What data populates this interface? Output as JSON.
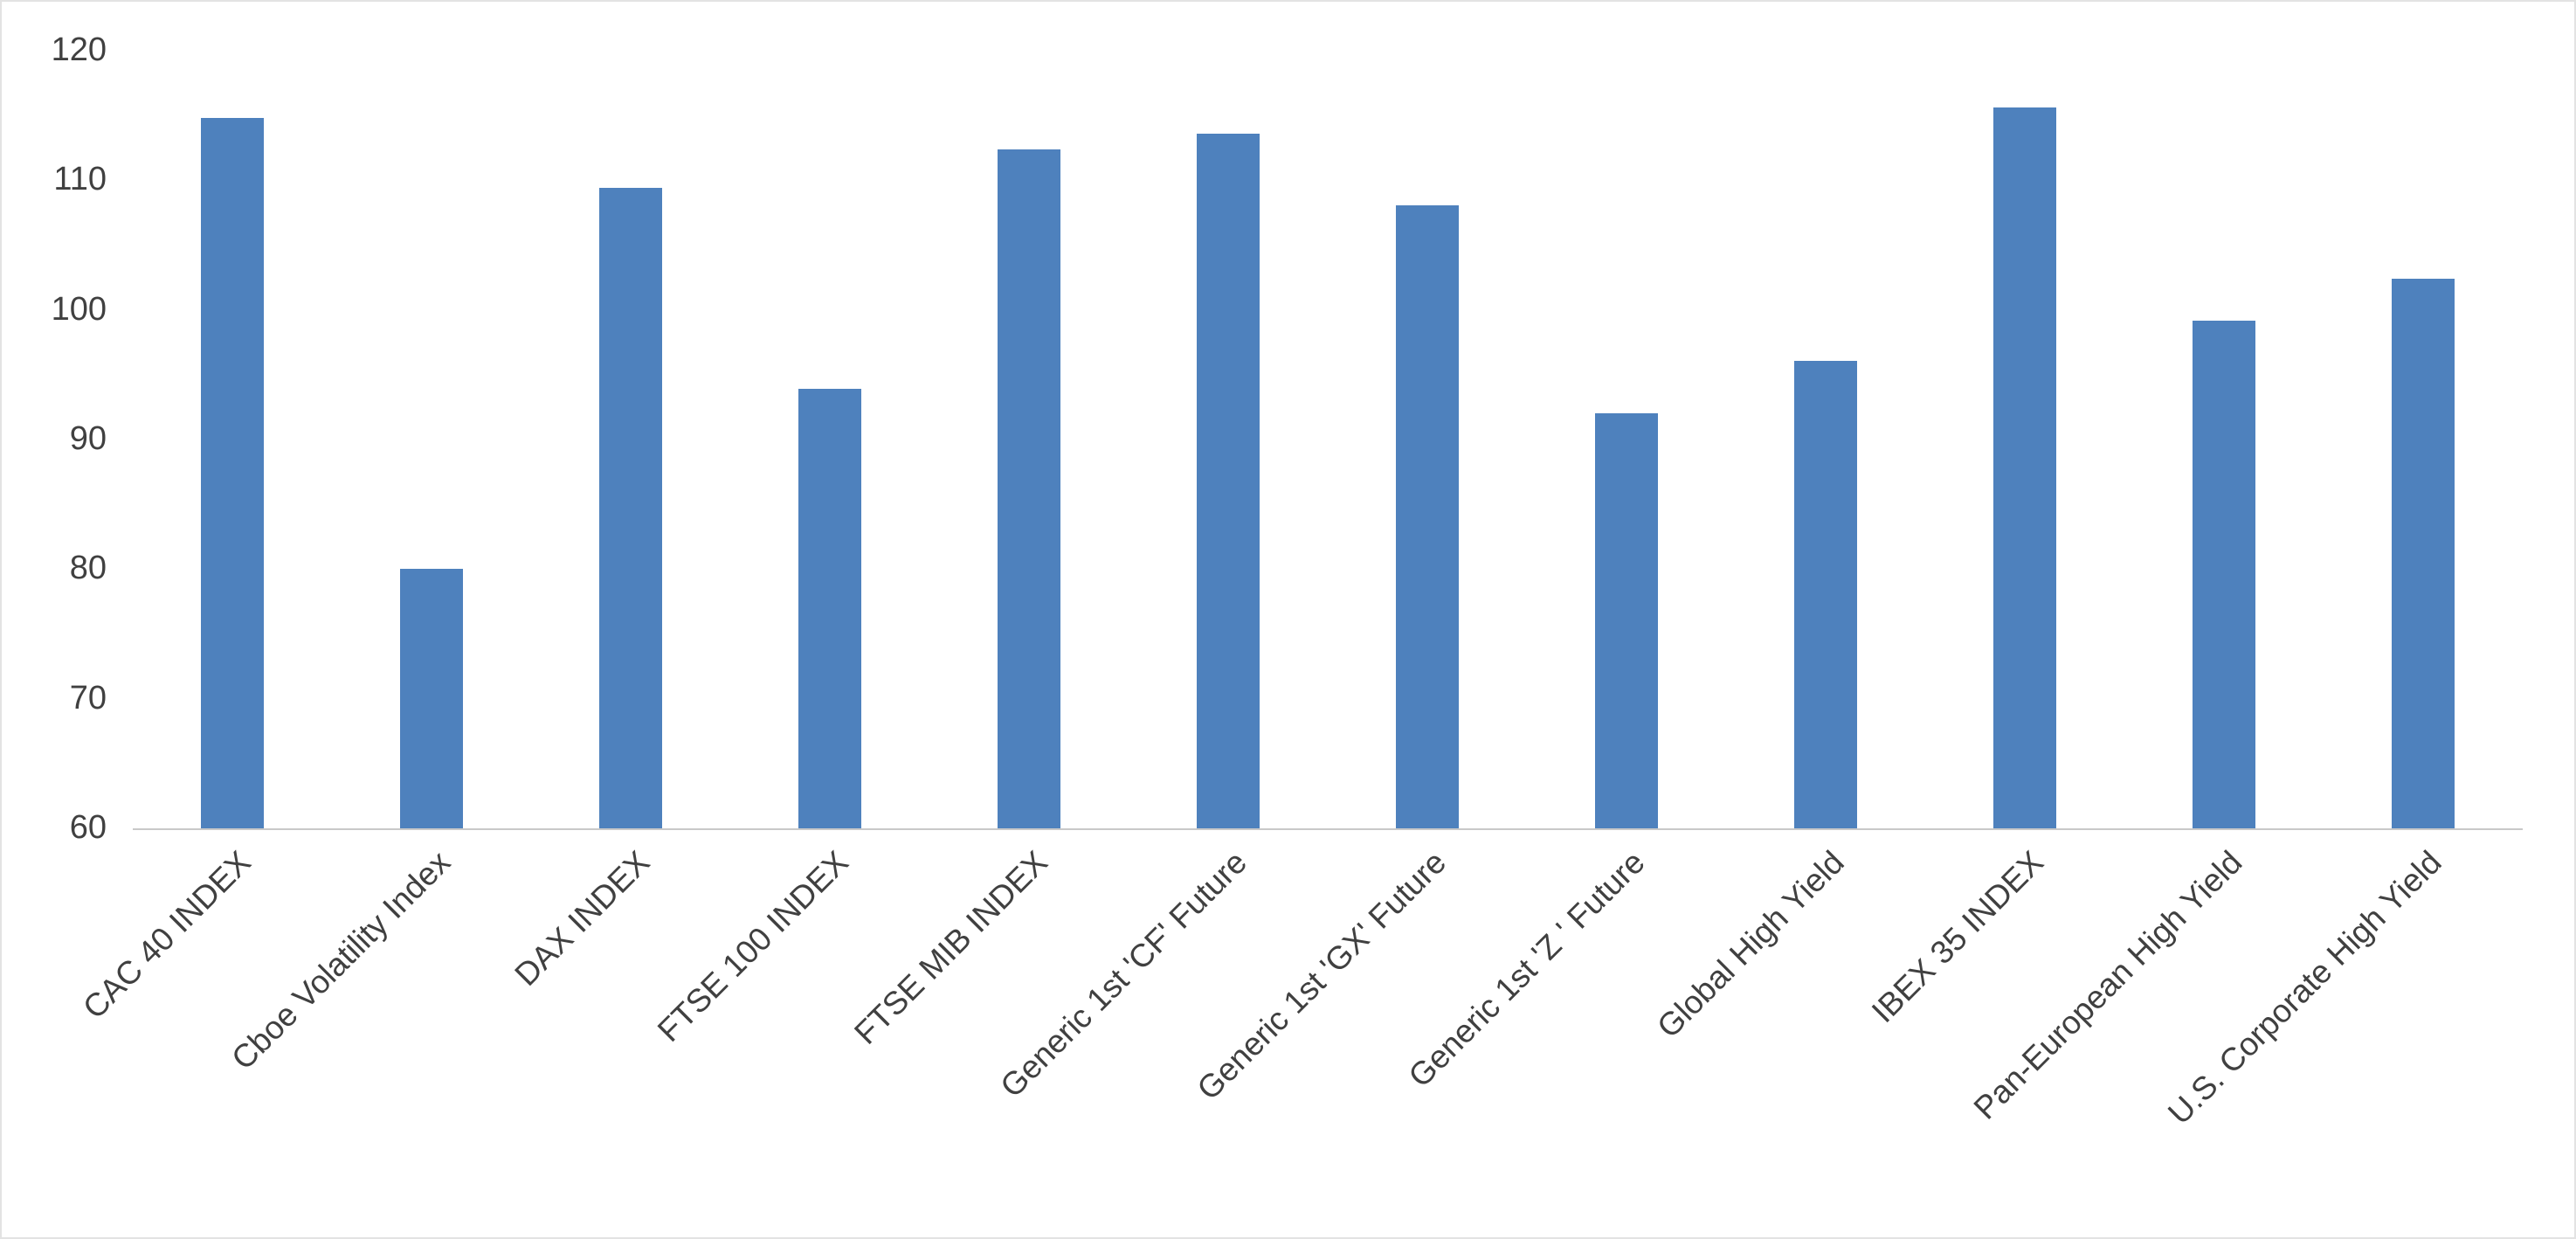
{
  "chart_data": {
    "type": "bar",
    "title": "",
    "xlabel": "",
    "ylabel": "",
    "categories": [
      "CAC 40 INDEX",
      "Cboe Volatility Index",
      "DAX INDEX",
      "FTSE 100 INDEX",
      "FTSE MIB INDEX",
      "Generic 1st 'CF' Future",
      "Generic 1st 'GX' Future",
      "Generic 1st 'Z ' Future",
      "Global High Yield",
      "IBEX 35 INDEX",
      "Pan-European High Yield",
      "U.S. Corporate High Yield"
    ],
    "values": [
      114.8,
      80.0,
      109.4,
      93.9,
      112.4,
      113.6,
      108.1,
      92.0,
      96.1,
      115.6,
      99.2,
      102.4
    ],
    "ylim": [
      60,
      120
    ],
    "yticks": [
      60,
      70,
      80,
      90,
      100,
      110,
      120
    ],
    "grid": false,
    "legend_position": "none",
    "colors": {
      "bar": "#4E81BD",
      "axis_line": "#C9C9C9",
      "text": "#404040",
      "background": "#FFFFFF"
    }
  }
}
